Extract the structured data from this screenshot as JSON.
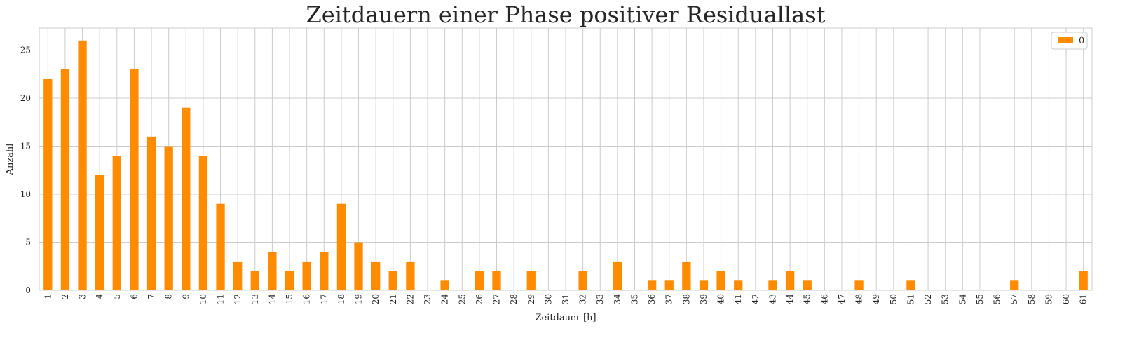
{
  "chart_data": {
    "type": "bar",
    "title": "Zeitdauern einer Phase positiver Residuallast",
    "xlabel": "Zeitdauer [h]",
    "ylabel": "Anzahl",
    "categories": [
      "1",
      "2",
      "3",
      "4",
      "5",
      "6",
      "7",
      "8",
      "9",
      "10",
      "11",
      "12",
      "13",
      "14",
      "15",
      "16",
      "17",
      "18",
      "19",
      "20",
      "21",
      "22",
      "23",
      "24",
      "25",
      "26",
      "27",
      "28",
      "29",
      "30",
      "31",
      "32",
      "33",
      "34",
      "35",
      "36",
      "37",
      "38",
      "39",
      "40",
      "41",
      "42",
      "43",
      "44",
      "45",
      "46",
      "47",
      "48",
      "49",
      "50",
      "51",
      "52",
      "53",
      "54",
      "55",
      "56",
      "57",
      "58",
      "59",
      "60",
      "61"
    ],
    "series": [
      {
        "name": "0",
        "color": "#ff8c00",
        "values": [
          22,
          23,
          26,
          12,
          14,
          23,
          16,
          15,
          19,
          14,
          9,
          3,
          2,
          4,
          2,
          3,
          4,
          9,
          5,
          3,
          2,
          3,
          0,
          1,
          0,
          2,
          2,
          0,
          2,
          0,
          0,
          2,
          0,
          3,
          0,
          1,
          1,
          3,
          1,
          2,
          1,
          0,
          1,
          2,
          1,
          0,
          0,
          1,
          0,
          0,
          1,
          0,
          0,
          0,
          0,
          0,
          1,
          0,
          0,
          0,
          2
        ]
      }
    ],
    "ylim": [
      0,
      27.3
    ],
    "yticks": [
      0,
      5,
      10,
      15,
      20,
      25
    ],
    "grid": true,
    "legend": "top-right"
  }
}
